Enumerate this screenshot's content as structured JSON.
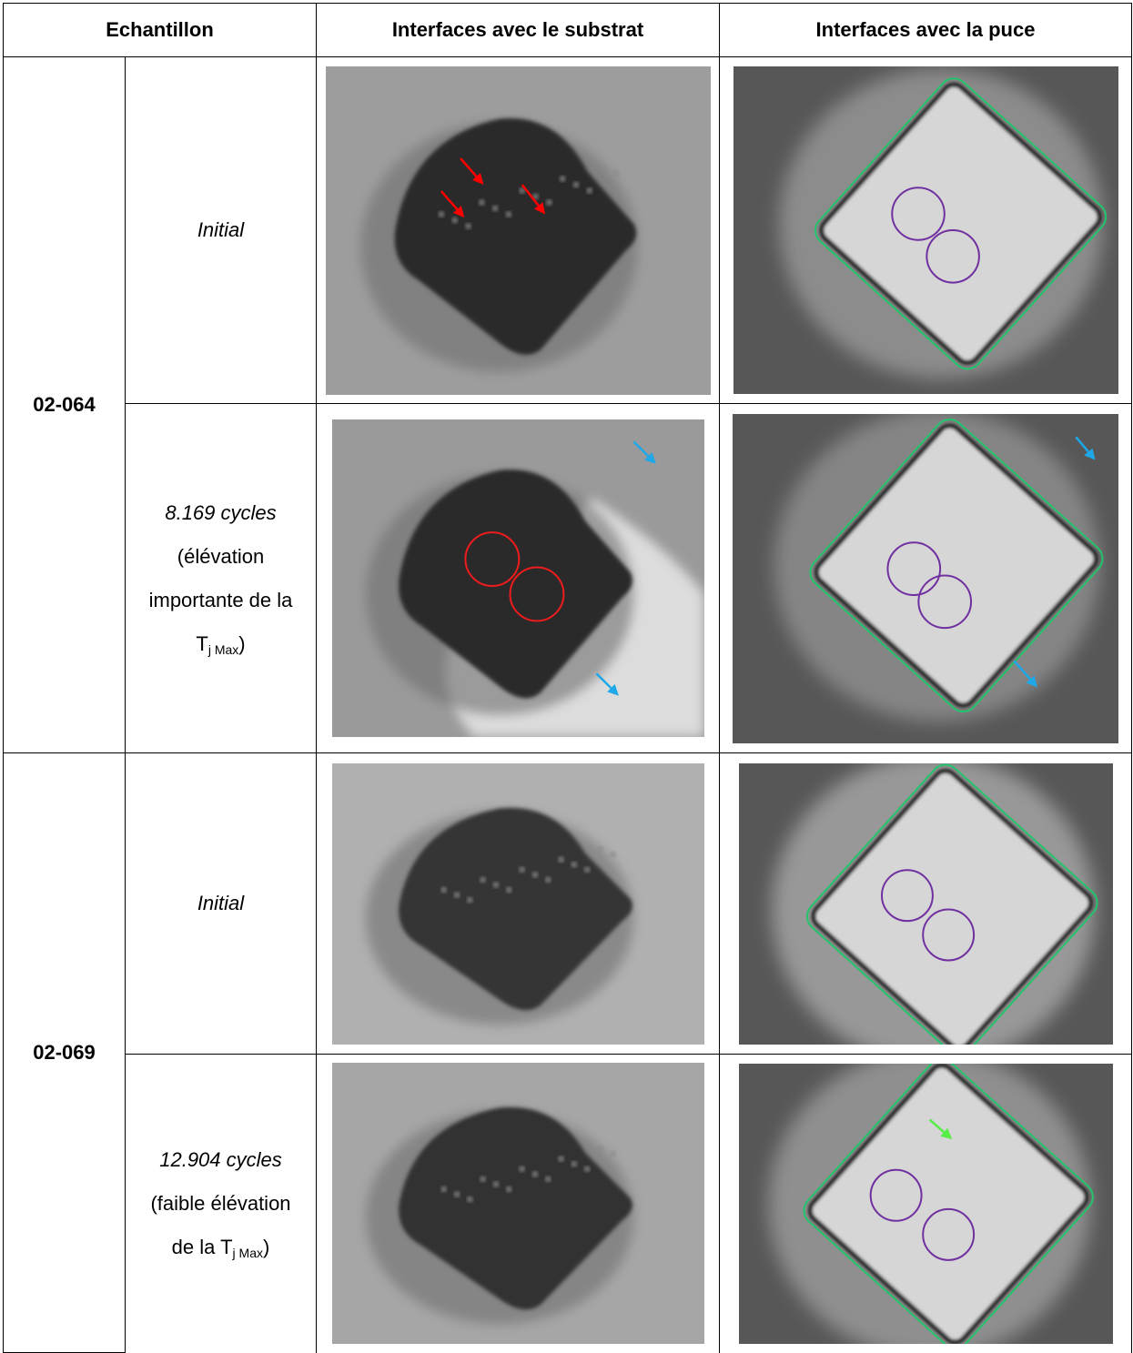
{
  "table": {
    "headers": [
      "Echantillon",
      "Interfaces avec le substrat",
      "Interfaces avec la puce"
    ],
    "samples": [
      {
        "name": "02-064",
        "rows": [
          {
            "condition": "Initial"
          },
          {
            "condition": "8.169 cycles",
            "note_before": "(élévation importante de la T",
            "note_sub": "j Max",
            "note_after": ")"
          }
        ]
      },
      {
        "name": "02-069",
        "rows": [
          {
            "condition": "Initial"
          },
          {
            "condition": "12.904 cycles",
            "note_before": "(faible élévation de la T",
            "note_sub": "j Max",
            "note_after": ")"
          }
        ]
      }
    ]
  }
}
